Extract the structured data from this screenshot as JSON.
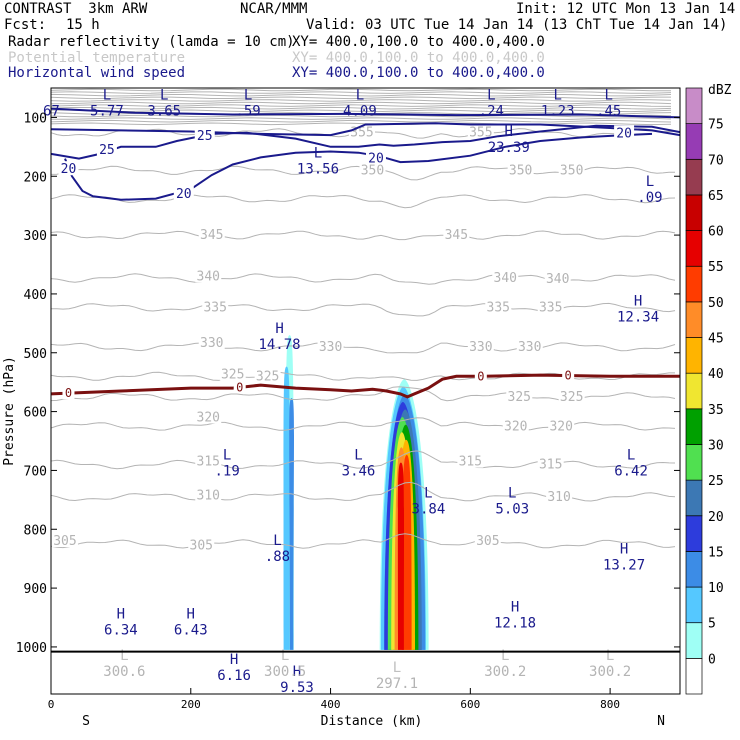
{
  "header": {
    "model": "CONTRAST  3km ARW",
    "center": "NCAR/MMM",
    "init": "Init: 12 UTC Mon 13 Jan 14",
    "fcst_label": "Fcst:",
    "fcst_value": "15 h",
    "valid": "Valid: 03 UTC Tue 14 Jan 14 (13 ChT Tue 14 Jan 14)"
  },
  "legend_lines": [
    {
      "label": "Radar reflectivity (lamda = 10 cm)",
      "xy": "XY= 400.0,100.0 to 400.0,400.0",
      "color": "#000000"
    },
    {
      "label": "Potential temperature",
      "xy": "XY= 400.0,100.0 to 400.0,400.0",
      "color": "#c8c8c8"
    },
    {
      "label": "Horizontal wind speed",
      "xy": "XY= 400.0,100.0 to 400.0,400.0",
      "color": "#1a1a8c"
    }
  ],
  "chart_data": {
    "type": "cross-section",
    "xlabel": "Distance (km)",
    "ylabel": "Pressure (hPa)",
    "xlim": [
      0,
      900
    ],
    "ylim": [
      1080,
      50
    ],
    "x_ticks": [
      0,
      200,
      400,
      600,
      800
    ],
    "y_ticks": [
      100,
      200,
      300,
      400,
      500,
      600,
      700,
      800,
      900,
      1000
    ],
    "left_end": "S",
    "right_end": "N",
    "colorbar": {
      "unit": "dBZ",
      "levels": [
        0,
        5,
        10,
        15,
        20,
        25,
        30,
        35,
        40,
        45,
        50,
        55,
        60,
        65,
        70,
        75
      ],
      "colors": [
        "#ffffff",
        "#9ffff5",
        "#55c8ff",
        "#3c8ce6",
        "#2d3cdc",
        "#3c78b4",
        "#50e050",
        "#00a000",
        "#f0e630",
        "#ffb400",
        "#ff8c28",
        "#ff3c00",
        "#e60000",
        "#c80000",
        "#963c50",
        "#963cb4",
        "#c88cc8"
      ]
    },
    "wind_contours": [
      {
        "label": "25",
        "distance": 80,
        "pressure": 155
      },
      {
        "label": "25",
        "distance": 220,
        "pressure": 132
      },
      {
        "label": "20",
        "distance": 25,
        "pressure": 188
      },
      {
        "label": "20",
        "distance": 190,
        "pressure": 230
      },
      {
        "label": "20",
        "distance": 465,
        "pressure": 170
      },
      {
        "label": "20",
        "distance": 820,
        "pressure": 127
      }
    ],
    "theta_contours": [
      {
        "label": "355",
        "distance": 445,
        "pressure": 126
      },
      {
        "label": "355",
        "distance": 615,
        "pressure": 126
      },
      {
        "label": "350",
        "distance": 460,
        "pressure": 190
      },
      {
        "label": "350",
        "distance": 672,
        "pressure": 190
      },
      {
        "label": "350",
        "distance": 745,
        "pressure": 190
      },
      {
        "label": "345",
        "distance": 230,
        "pressure": 300
      },
      {
        "label": "345",
        "distance": 580,
        "pressure": 300
      },
      {
        "label": "340",
        "distance": 225,
        "pressure": 370
      },
      {
        "label": "340",
        "distance": 650,
        "pressure": 373
      },
      {
        "label": "340",
        "distance": 725,
        "pressure": 375
      },
      {
        "label": "335",
        "distance": 235,
        "pressure": 423
      },
      {
        "label": "335",
        "distance": 640,
        "pressure": 423
      },
      {
        "label": "335",
        "distance": 715,
        "pressure": 423
      },
      {
        "label": "330",
        "distance": 230,
        "pressure": 483
      },
      {
        "label": "330",
        "distance": 400,
        "pressure": 490
      },
      {
        "label": "330",
        "distance": 615,
        "pressure": 490
      },
      {
        "label": "330",
        "distance": 685,
        "pressure": 490
      },
      {
        "label": "325",
        "distance": 260,
        "pressure": 537
      },
      {
        "label": "325",
        "distance": 310,
        "pressure": 540
      },
      {
        "label": "325",
        "distance": 670,
        "pressure": 575
      },
      {
        "label": "325",
        "distance": 745,
        "pressure": 575
      },
      {
        "label": "320",
        "distance": 225,
        "pressure": 610
      },
      {
        "label": "320",
        "distance": 665,
        "pressure": 625
      },
      {
        "label": "320",
        "distance": 730,
        "pressure": 625
      },
      {
        "label": "315",
        "distance": 225,
        "pressure": 685
      },
      {
        "label": "315",
        "distance": 600,
        "pressure": 685
      },
      {
        "label": "315",
        "distance": 715,
        "pressure": 690
      },
      {
        "label": "310",
        "distance": 225,
        "pressure": 743
      },
      {
        "label": "310",
        "distance": 727,
        "pressure": 745
      },
      {
        "label": "305",
        "distance": 20,
        "pressure": 820
      },
      {
        "label": "305",
        "distance": 215,
        "pressure": 828
      },
      {
        "label": "305",
        "distance": 625,
        "pressure": 820
      }
    ],
    "freezing_level": {
      "label": "0",
      "labels_at": [
        25,
        270,
        615,
        740
      ],
      "distance": [
        0,
        100,
        200,
        260,
        300,
        350,
        400,
        430,
        460,
        480,
        500,
        510,
        520,
        540,
        560,
        580,
        620,
        700,
        800,
        900
      ],
      "pressure": [
        570,
        565,
        560,
        560,
        555,
        560,
        563,
        565,
        562,
        565,
        570,
        575,
        570,
        560,
        545,
        540,
        540,
        538,
        540,
        540
      ]
    },
    "extrema": [
      {
        "kind": "L",
        "value": "5.77",
        "distance": 80,
        "pressure": 83
      },
      {
        "kind": "L",
        "value": "3.65",
        "distance": 162,
        "pressure": 83
      },
      {
        "kind": "L",
        "value": ".59",
        "distance": 282,
        "pressure": 83
      },
      {
        "kind": "L",
        "value": "4.09",
        "distance": 442,
        "pressure": 83
      },
      {
        "kind": "L",
        "value": ".24",
        "distance": 630,
        "pressure": 83
      },
      {
        "kind": "L",
        "value": "1.23",
        "distance": 725,
        "pressure": 83
      },
      {
        "kind": "L",
        "value": ".45",
        "distance": 798,
        "pressure": 83
      },
      {
        "kind": "H",
        "value": "23.39",
        "distance": 655,
        "pressure": 145
      },
      {
        "kind": "L",
        "value": "13.56",
        "distance": 382,
        "pressure": 182
      },
      {
        "kind": "L",
        "value": ".09",
        "distance": 857,
        "pressure": 230
      },
      {
        "kind": "H",
        "value": "12.34",
        "distance": 840,
        "pressure": 433
      },
      {
        "kind": "H",
        "value": "14.78",
        "distance": 327,
        "pressure": 480
      },
      {
        "kind": "L",
        "value": ".19",
        "distance": 252,
        "pressure": 695
      },
      {
        "kind": "L",
        "value": "3.46",
        "distance": 440,
        "pressure": 695
      },
      {
        "kind": "L",
        "value": "3.84",
        "distance": 540,
        "pressure": 760
      },
      {
        "kind": "L",
        "value": "5.03",
        "distance": 660,
        "pressure": 760
      },
      {
        "kind": "L",
        "value": "6.42",
        "distance": 830,
        "pressure": 695
      },
      {
        "kind": "L",
        "value": ".88",
        "distance": 324,
        "pressure": 840
      },
      {
        "kind": "H",
        "value": "13.27",
        "distance": 820,
        "pressure": 855
      },
      {
        "kind": "H",
        "value": "12.18",
        "distance": 664,
        "pressure": 953
      },
      {
        "kind": "H",
        "value": "6.34",
        "distance": 100,
        "pressure": 965
      },
      {
        "kind": "H",
        "value": "6.43",
        "distance": 200,
        "pressure": 965
      },
      {
        "kind": "H",
        "value": "6.16",
        "distance": 262,
        "pressure": 1043
      },
      {
        "kind": "H",
        "value": "9.53",
        "distance": 352,
        "pressure": 1063
      }
    ],
    "theta_extrema": [
      {
        "kind": "L",
        "value": "300.6",
        "distance": 105,
        "pressure": 1043
      },
      {
        "kind": "L",
        "value": "300.5",
        "distance": 335,
        "pressure": 1043
      },
      {
        "kind": "L",
        "value": "300.2",
        "distance": 650,
        "pressure": 1043
      },
      {
        "kind": "L",
        "value": "300.2",
        "distance": 800,
        "pressure": 1043
      },
      {
        "kind": "L",
        "value": "297.1",
        "distance": 495,
        "pressure": 1063
      }
    ],
    "edge_values": [
      {
        "value": "67",
        "distance": -5,
        "pressure": 83
      }
    ],
    "reflectivity_cells": [
      {
        "distance": 340,
        "top": 470,
        "bottom": 1005,
        "width": 12,
        "max_level": 10
      },
      {
        "distance": 505,
        "top": 545,
        "bottom": 1005,
        "width": 70,
        "max_level": 55
      }
    ]
  }
}
